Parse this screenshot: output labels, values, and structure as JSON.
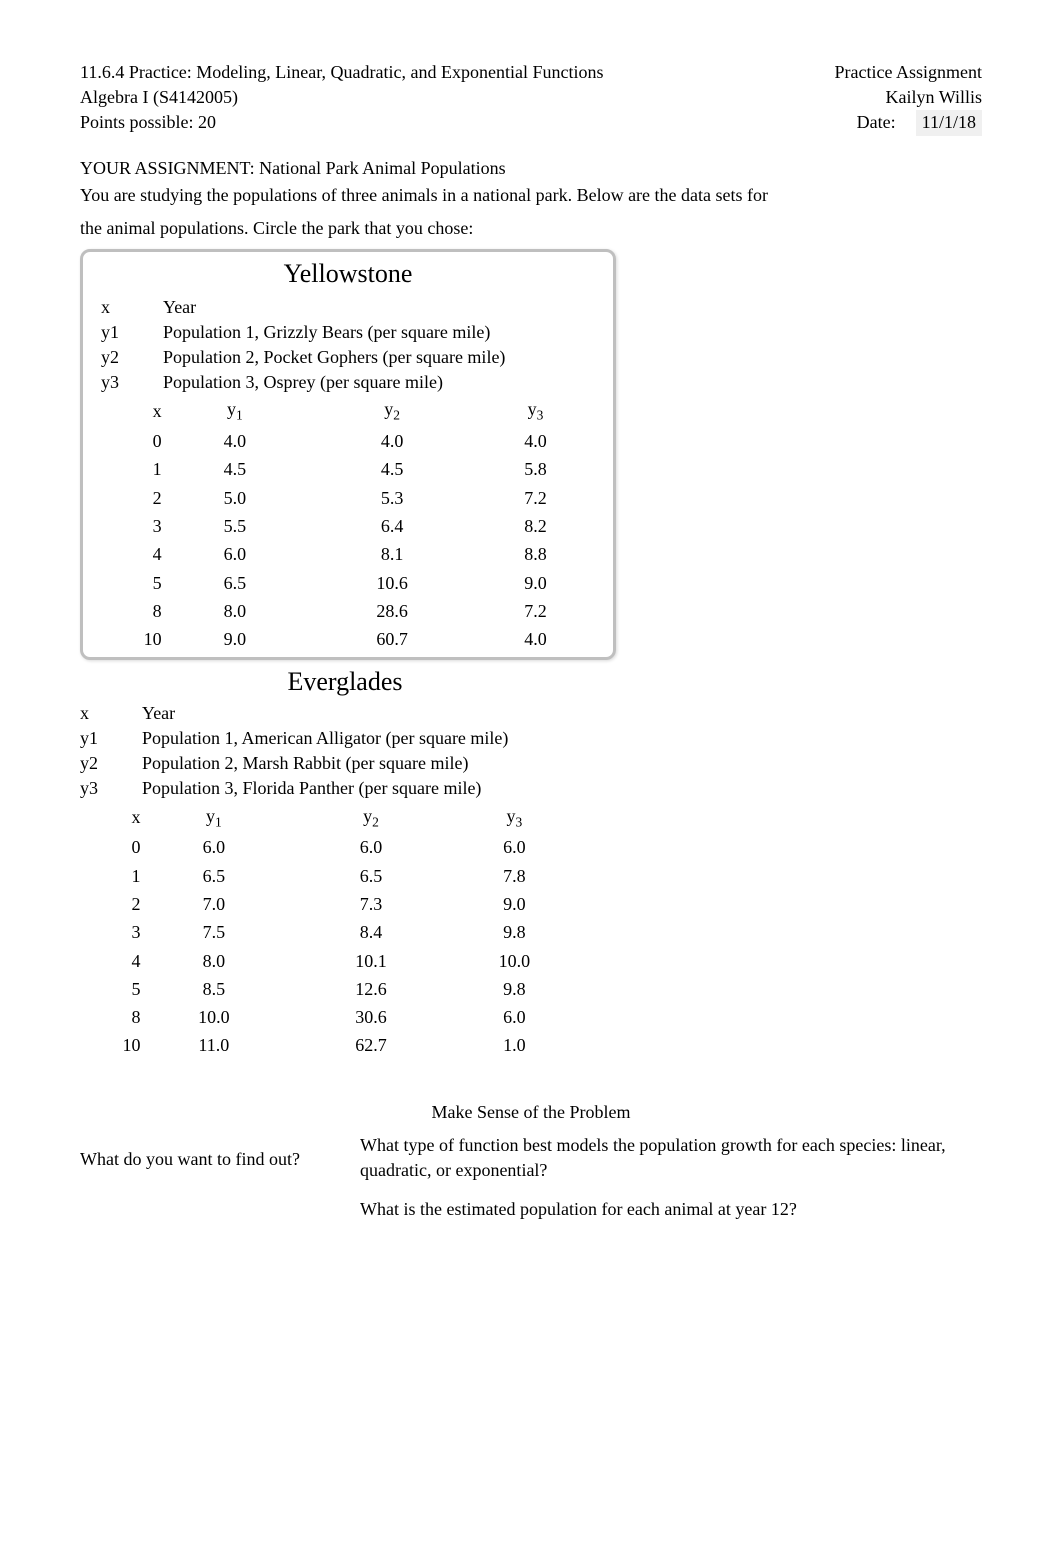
{
  "header": {
    "lesson": "11.6.4 Practice: Modeling, Linear, Quadratic, and Exponential Functions",
    "type": "Practice Assignment",
    "course": "Algebra I (S4142005)",
    "student": "Kailyn Willis",
    "points": "Points possible: 20",
    "date_label": "Date:",
    "date": "11/1/18"
  },
  "assignment": {
    "title": "YOUR ASSIGNMENT: National Park Animal Populations",
    "intro1": "You are studying the populations of three animals in a national park. Below are the data sets for",
    "intro2": "the animal populations. Circle the park that you chose:"
  },
  "yellowstone": {
    "title": "Yellowstone",
    "legend": {
      "x_k": "x",
      "x_v": "Year",
      "y1_k": "y1",
      "y1_v": "Population 1, Grizzly Bears  (per square mile)",
      "y2_k": "y2",
      "y2_v": "Population 2, Pocket Gophers (per square mile)",
      "y3_k": "y3",
      "y3_v": "Population 3, Osprey (per square mile)"
    },
    "headers": {
      "c0": "x",
      "c1": "y",
      "c1s": "1",
      "c2": "y",
      "c2s": "2",
      "c3": "y",
      "c3s": "3"
    },
    "rows": [
      {
        "x": "0",
        "y1": "4.0",
        "y2": "4.0",
        "y3": "4.0"
      },
      {
        "x": "1",
        "y1": "4.5",
        "y2": "4.5",
        "y3": "5.8"
      },
      {
        "x": "2",
        "y1": "5.0",
        "y2": "5.3",
        "y3": "7.2"
      },
      {
        "x": "3",
        "y1": "5.5",
        "y2": "6.4",
        "y3": "8.2"
      },
      {
        "x": "4",
        "y1": "6.0",
        "y2": "8.1",
        "y3": "8.8"
      },
      {
        "x": "5",
        "y1": "6.5",
        "y2": "10.6",
        "y3": "9.0"
      },
      {
        "x": "8",
        "y1": "8.0",
        "y2": "28.6",
        "y3": "7.2"
      },
      {
        "x": "10",
        "y1": "9.0",
        "y2": "60.7",
        "y3": "4.0"
      }
    ]
  },
  "everglades": {
    "title": "Everglades",
    "legend": {
      "x_k": "x",
      "x_v": "Year",
      "y1_k": "y1",
      "y1_v": "Population 1, American Alligator (per square mile)",
      "y2_k": "y2",
      "y2_v": "Population 2, Marsh Rabbit (per square mile)",
      "y3_k": "y3",
      "y3_v": "Population 3, Florida Panther (per square mile)"
    },
    "headers": {
      "c0": "x",
      "c1": "y",
      "c1s": "1",
      "c2": "y",
      "c2s": "2",
      "c3": "y",
      "c3s": "3"
    },
    "rows": [
      {
        "x": "0",
        "y1": "6.0",
        "y2": "6.0",
        "y3": "6.0"
      },
      {
        "x": "1",
        "y1": "6.5",
        "y2": "6.5",
        "y3": "7.8"
      },
      {
        "x": "2",
        "y1": "7.0",
        "y2": "7.3",
        "y3": "9.0"
      },
      {
        "x": "3",
        "y1": "7.5",
        "y2": "8.4",
        "y3": "9.8"
      },
      {
        "x": "4",
        "y1": "8.0",
        "y2": "10.1",
        "y3": "10.0"
      },
      {
        "x": "5",
        "y1": "8.5",
        "y2": "12.6",
        "y3": "9.8"
      },
      {
        "x": "8",
        "y1": "10.0",
        "y2": "30.6",
        "y3": "6.0"
      },
      {
        "x": "10",
        "y1": "11.0",
        "y2": "62.7",
        "y3": "1.0"
      }
    ]
  },
  "qa": {
    "section": "Make Sense of the Problem",
    "q_label": "What do you want to find out?",
    "a1": "What type of function best models the population growth for each species: linear, quadratic, or exponential?",
    "a2": "What is the estimated population for each animal at year 12?"
  },
  "style": {
    "box_border_color": "#bfbfbf",
    "date_bg": "#f0f0f0",
    "font_family": "Times New Roman",
    "body_fontsize": 18,
    "park_title_fontsize": 26,
    "page_bg": "#ffffff",
    "text_color": "#000000"
  }
}
